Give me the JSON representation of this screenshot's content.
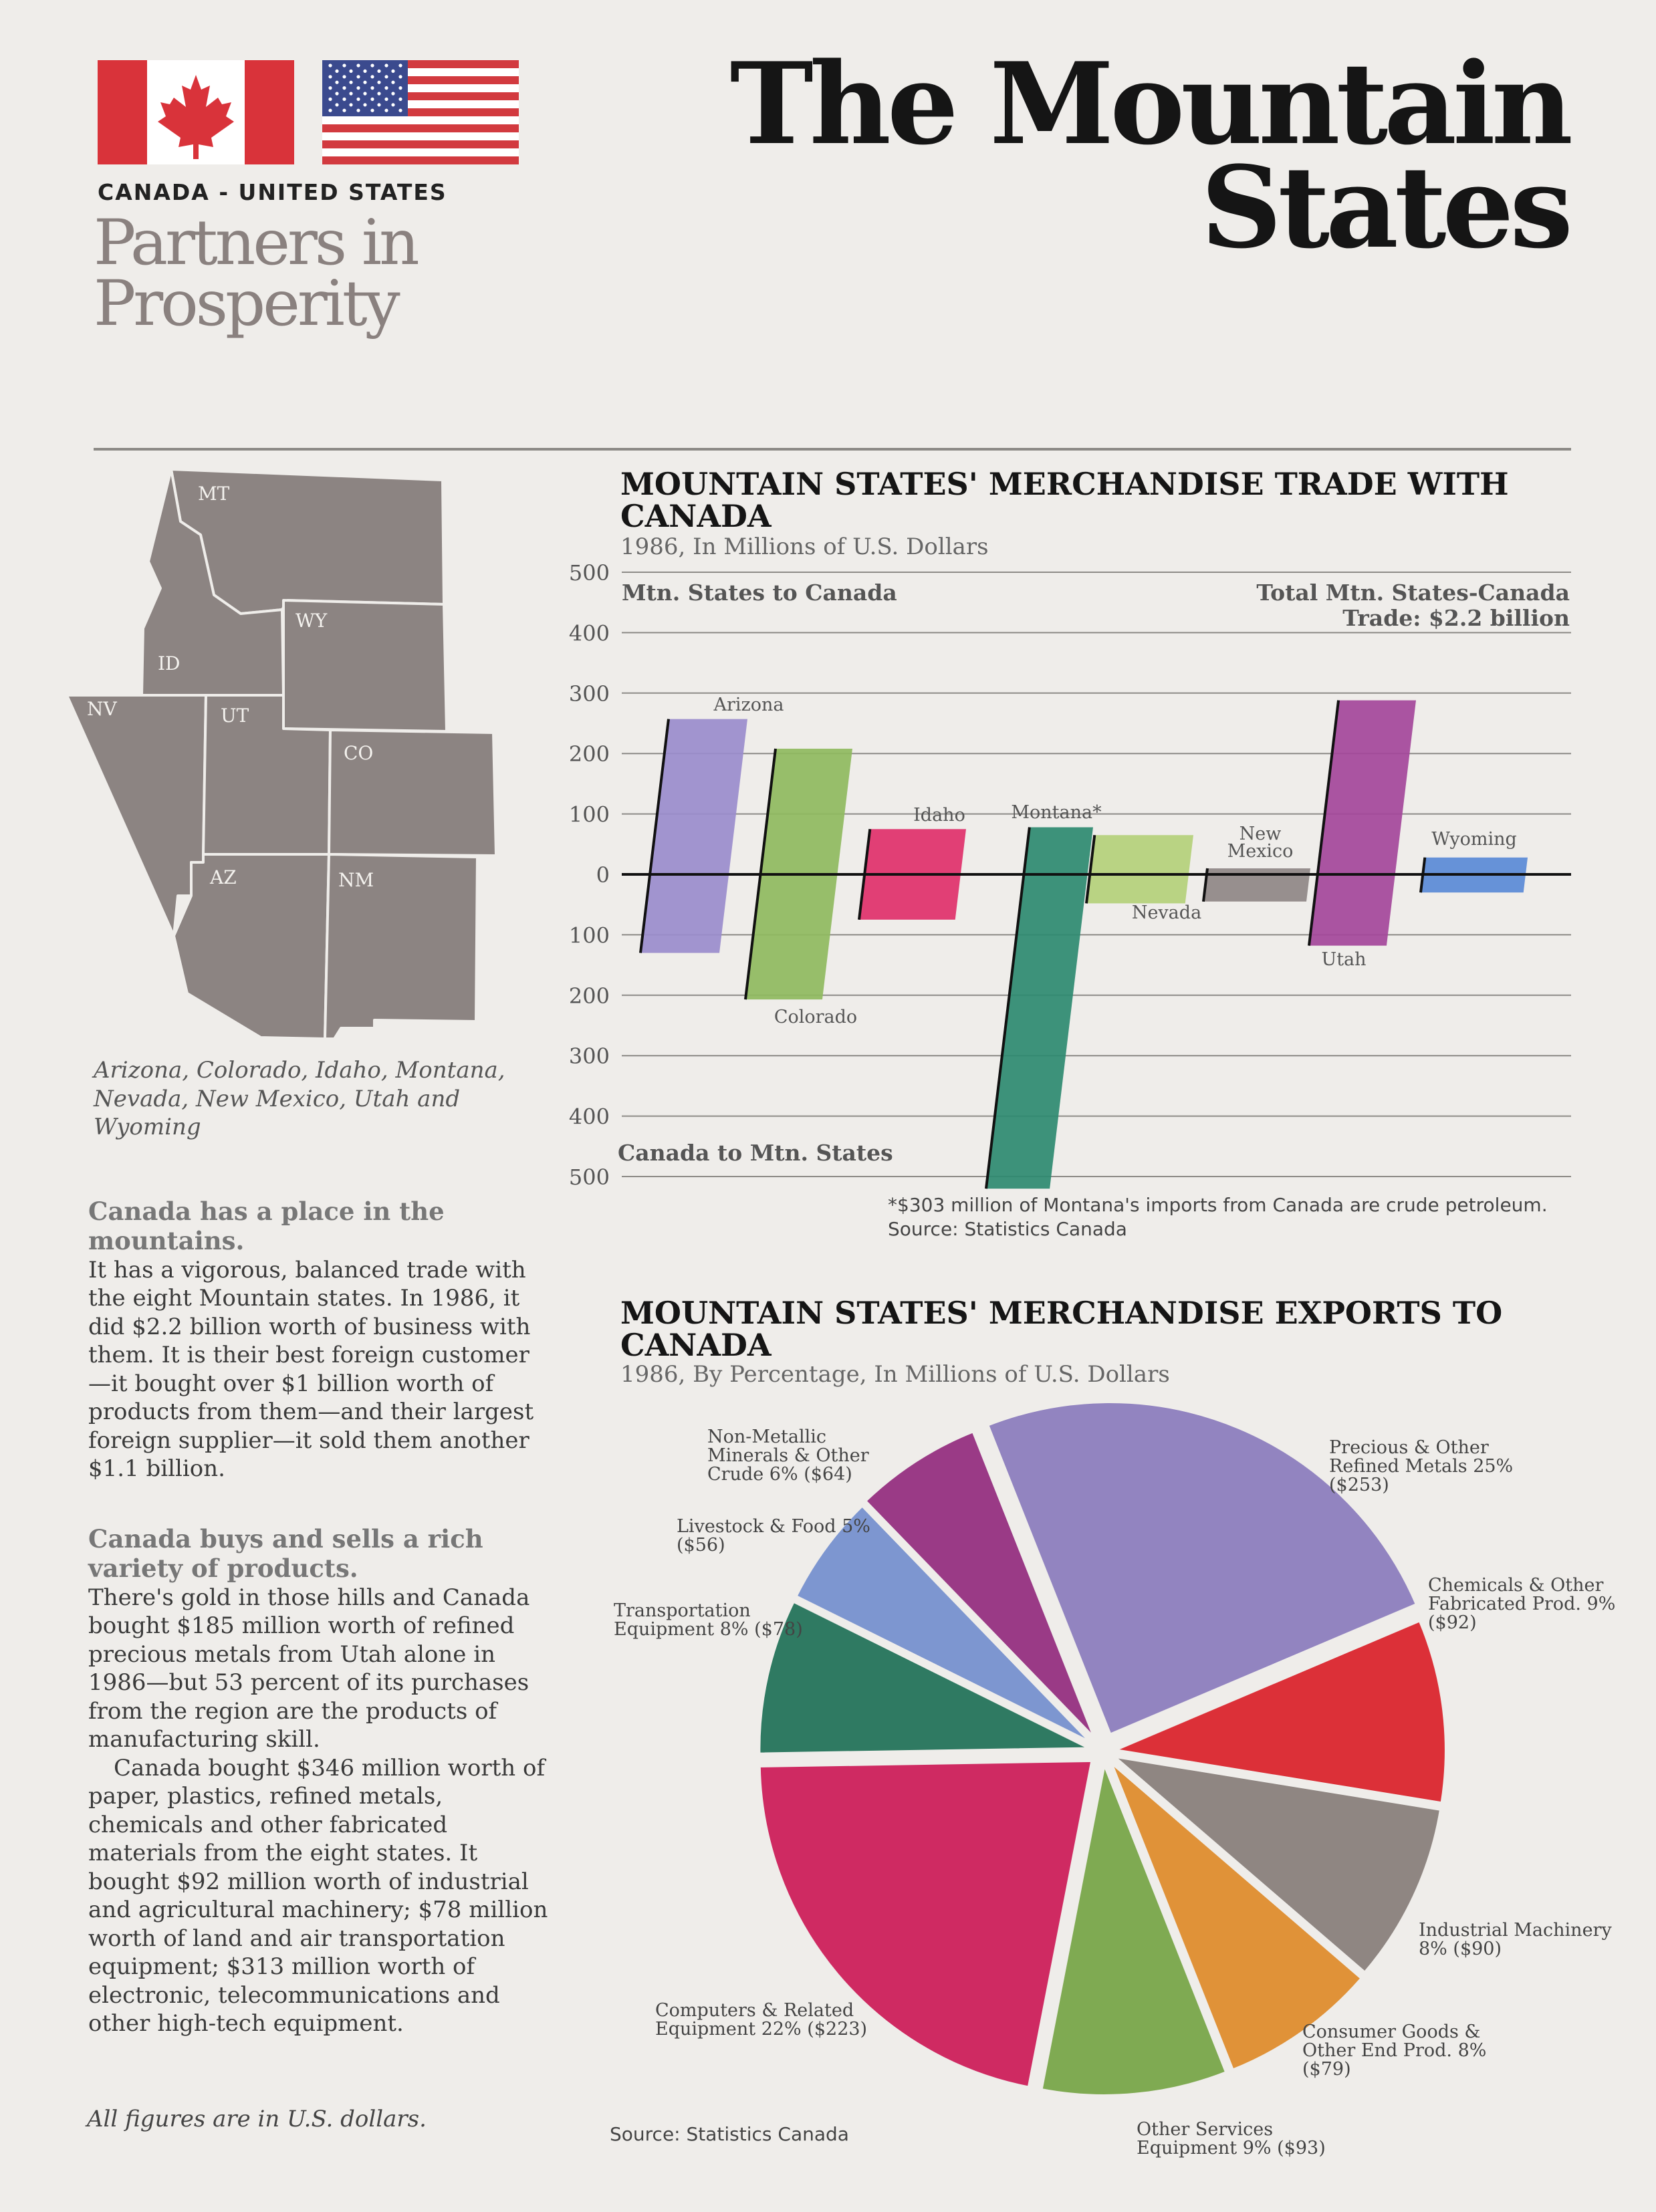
{
  "header": {
    "countries": "CANADA - UNITED STATES",
    "partners_line1": "Partners in",
    "partners_line2": "Prosperity",
    "title_line1": "The Mountain",
    "title_line2": "States"
  },
  "map": {
    "states": [
      "MT",
      "WY",
      "ID",
      "NV",
      "UT",
      "CO",
      "AZ",
      "NM"
    ],
    "fill_color": "#8c8482",
    "caption": "Arizona, Colorado, Idaho, Montana, Nevada, New Mexico, Utah and Wyoming"
  },
  "article": {
    "heading1": "Canada has a place in the mountains.",
    "para1": "It has a vigorous, balanced trade with the eight Mountain states. In 1986, it did $2.2 billion worth of business with them. It is their best foreign customer—it bought over $1 billion worth of products from them—and their largest foreign supplier—it sold them another $1.1 billion.",
    "heading2": "Canada buys and sells a rich variety of products.",
    "para2": "There's gold in those hills and Canada bought $185 million worth of refined precious metals from Utah alone in 1986—but 53 percent of its purchases from the region are the products of manufacturing skill.",
    "para3": "Canada bought $346 million worth of paper, plastics, refined metals, chemicals and other fabricated materials from the eight states. It bought $92 million worth of industrial and agricultural machinery; $78 million worth of land and air transportation equipment; $313 million worth of electronic, telecommunications and other high-tech equipment.",
    "footnote": "All figures are in U.S. dollars."
  },
  "chart_data": [
    {
      "type": "bar",
      "title": "MOUNTAIN STATES' MERCHANDISE TRADE WITH CANADA",
      "subtitle": "1986, In Millions of U.S. Dollars",
      "upper_label": "Mtn. States to Canada",
      "lower_label": "Canada to Mtn. States",
      "total_line1": "Total Mtn. States-Canada",
      "total_line2": "Trade: $2.2 billion",
      "ytick_labels": [
        "500",
        "400",
        "300",
        "200",
        "100",
        "0",
        "100",
        "200",
        "300",
        "400",
        "500"
      ],
      "ylim": [
        -500,
        500
      ],
      "categories": [
        "Arizona",
        "Colorado",
        "Idaho",
        "Montana*",
        "Nevada",
        "New Mexico",
        "Utah",
        "Wyoming"
      ],
      "series": [
        {
          "name": "Mtn. States to Canada",
          "values": [
            257,
            208,
            75,
            78,
            65,
            10,
            288,
            28
          ]
        },
        {
          "name": "Canada to Mtn. States",
          "values": [
            130,
            207,
            75,
            520,
            48,
            45,
            118,
            30
          ]
        }
      ],
      "colors": [
        "#9a8ccc",
        "#8fba5e",
        "#e0306a",
        "#2e8a70",
        "#b4d07a",
        "#8f8785",
        "#a4469a",
        "#5a8ad6"
      ],
      "footnote": "*$303 million of Montana's imports from Canada are crude petroleum.",
      "source": "Source: Statistics Canada"
    },
    {
      "type": "pie",
      "title": "MOUNTAIN STATES' MERCHANDISE EXPORTS TO CANADA",
      "subtitle": "1986, By Percentage, In Millions of U.S. Dollars",
      "slices": [
        {
          "label": "Precious & Other Refined Metals 25% ($253)",
          "percent": 25,
          "value": 253,
          "color": "#9284c0"
        },
        {
          "label": "Chemicals & Other Fabricated Prod. 9% ($92)",
          "percent": 9,
          "value": 92,
          "color": "#dc3038"
        },
        {
          "label": "Industrial Machinery 8% ($90)",
          "percent": 8,
          "value": 90,
          "color": "#8f8682"
        },
        {
          "label": "Consumer Goods & Other End Prod. 8% ($79)",
          "percent": 8,
          "value": 79,
          "color": "#e09238"
        },
        {
          "label": "Other Services Equipment 9% ($93)",
          "percent": 9,
          "value": 93,
          "color": "#7faa52"
        },
        {
          "label": "Computers & Related Equipment 22% ($223)",
          "percent": 22,
          "value": 223,
          "color": "#cf2a62"
        },
        {
          "label": "Transportation Equipment 8% ($78)",
          "percent": 8,
          "value": 78,
          "color": "#2f7a62"
        },
        {
          "label": "Livestock & Food 5% ($56)",
          "percent": 5,
          "value": 56,
          "color": "#7d96d0"
        },
        {
          "label": "Non-Metallic Minerals & Other Crude 6% ($64)",
          "percent": 6,
          "value": 64,
          "color": "#9a3a86"
        }
      ],
      "source": "Source: Statistics Canada"
    }
  ]
}
